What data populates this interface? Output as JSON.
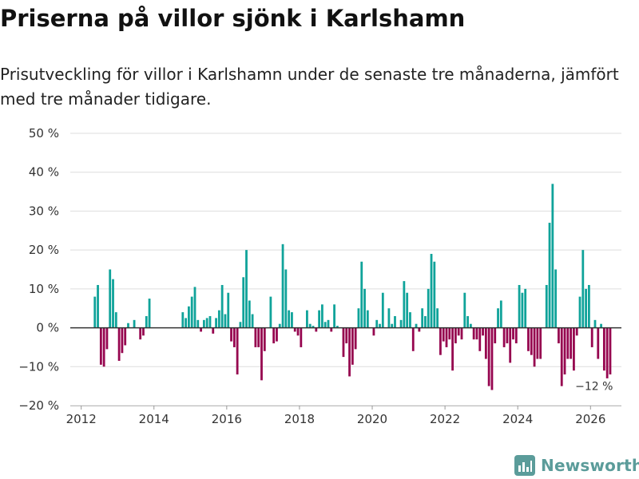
{
  "title": "Priserna på villor sjönk i Karlshamn",
  "subtitle": "Prisutveckling för villor i Karlshamn under de senaste tre månaderna, jämfört med tre månader tidigare.",
  "brand": "Newsworthy",
  "colors": {
    "positive": "#10a39a",
    "negative": "#96054f",
    "grid": "#dddddd",
    "zero": "#333333",
    "brand": "#5b9c9a"
  },
  "chart_data": {
    "type": "bar",
    "title": "Priserna på villor sjönk i Karlshamn",
    "xlabel": "",
    "ylabel": "",
    "ylim": [
      -20,
      50
    ],
    "xlim": [
      2011.7,
      2026.85
    ],
    "grid": true,
    "y_ticks": [
      {
        "value": -20,
        "label": "−20 %"
      },
      {
        "value": -10,
        "label": "−10 %"
      },
      {
        "value": 0,
        "label": "0 %"
      },
      {
        "value": 10,
        "label": "10 %"
      },
      {
        "value": 20,
        "label": "20 %"
      },
      {
        "value": 30,
        "label": "30 %"
      },
      {
        "value": 40,
        "label": "40 %"
      },
      {
        "value": 50,
        "label": "50 %"
      }
    ],
    "x_ticks": [
      {
        "value": 2012,
        "label": "2012"
      },
      {
        "value": 2014,
        "label": "2014"
      },
      {
        "value": 2016,
        "label": "2016"
      },
      {
        "value": 2018,
        "label": "2018"
      },
      {
        "value": 2020,
        "label": "2020"
      },
      {
        "value": 2022,
        "label": "2022"
      },
      {
        "value": 2024,
        "label": "2024"
      },
      {
        "value": 2026,
        "label": "2026"
      }
    ],
    "series": [
      {
        "name": "Prisutveckling",
        "start": 2012.375,
        "step": 0.0833333,
        "values": [
          8,
          11,
          -9.5,
          -10,
          -5.5,
          15,
          12.5,
          4,
          -8.5,
          -6.5,
          -4.5,
          1.2,
          0,
          2,
          0,
          -3,
          -2,
          3,
          7.5,
          0,
          0,
          0,
          0,
          0,
          0,
          0,
          0,
          0,
          0,
          4,
          2.5,
          5.5,
          8,
          10.5,
          2,
          -1,
          2,
          2.5,
          3,
          -1.5,
          2.5,
          4.5,
          11,
          3.5,
          9,
          -3.5,
          -5,
          -12,
          1.5,
          13,
          20,
          7,
          3.5,
          -5,
          -5,
          -13.5,
          -6,
          0,
          8,
          -4,
          -3.5,
          1,
          21.5,
          15,
          4.5,
          4,
          -1,
          -2,
          -5,
          0,
          4.5,
          1,
          0.5,
          -1,
          4.5,
          6,
          1.5,
          2,
          -1,
          6,
          0.5,
          0,
          -7.5,
          -4,
          -12.5,
          -9.5,
          -5.5,
          5,
          17,
          10,
          4.5,
          0,
          -2,
          2,
          1,
          9,
          0,
          5,
          1,
          3,
          0,
          2,
          12,
          9,
          4,
          -6,
          1,
          -1,
          5,
          3,
          10,
          19,
          17,
          5,
          -7,
          -3.5,
          -5,
          -3,
          -11,
          -4,
          -2,
          -3,
          9,
          3,
          1,
          -3,
          -3,
          -6,
          -2,
          -8,
          -15,
          -16,
          -4,
          5,
          7,
          -5,
          -4,
          -9,
          -3,
          -4,
          11,
          9,
          10,
          -6,
          -7,
          -10,
          -8,
          -8,
          0,
          11,
          27,
          37,
          15,
          -4,
          -15,
          -12,
          -8,
          -8,
          -11,
          -2,
          8,
          20,
          10,
          11,
          -5,
          2,
          -8,
          1,
          -11,
          -13,
          -12
        ]
      }
    ],
    "annotations": [
      {
        "text": "−12 %",
        "x": 2026.1,
        "y": -16
      }
    ]
  }
}
